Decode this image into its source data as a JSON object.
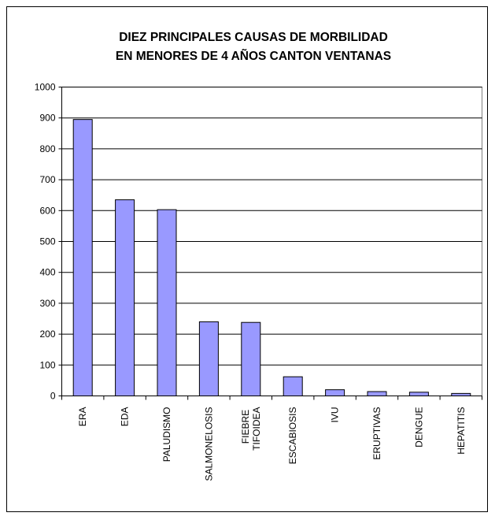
{
  "chart_data": {
    "type": "bar",
    "title": [
      "DIEZ PRINCIPALES CAUSAS DE MORBILIDAD",
      "EN MENORES DE 4 AÑOS CANTON VENTANAS"
    ],
    "categories": [
      "ERA",
      "EDA",
      "PALUDISMO",
      "SALMONELOSIS",
      "FIEBRE TIFOIDEA",
      "ESCABIOSIS",
      "IVU",
      "ERUPTIVAS",
      "DENGUE",
      "HEPATITIS"
    ],
    "values": [
      895,
      635,
      603,
      240,
      238,
      62,
      20,
      14,
      12,
      8
    ],
    "color": "#9999ff",
    "ylim": [
      0,
      1000
    ],
    "yticks": [
      0,
      100,
      200,
      300,
      400,
      500,
      600,
      700,
      800,
      900,
      1000
    ],
    "grid": true
  }
}
